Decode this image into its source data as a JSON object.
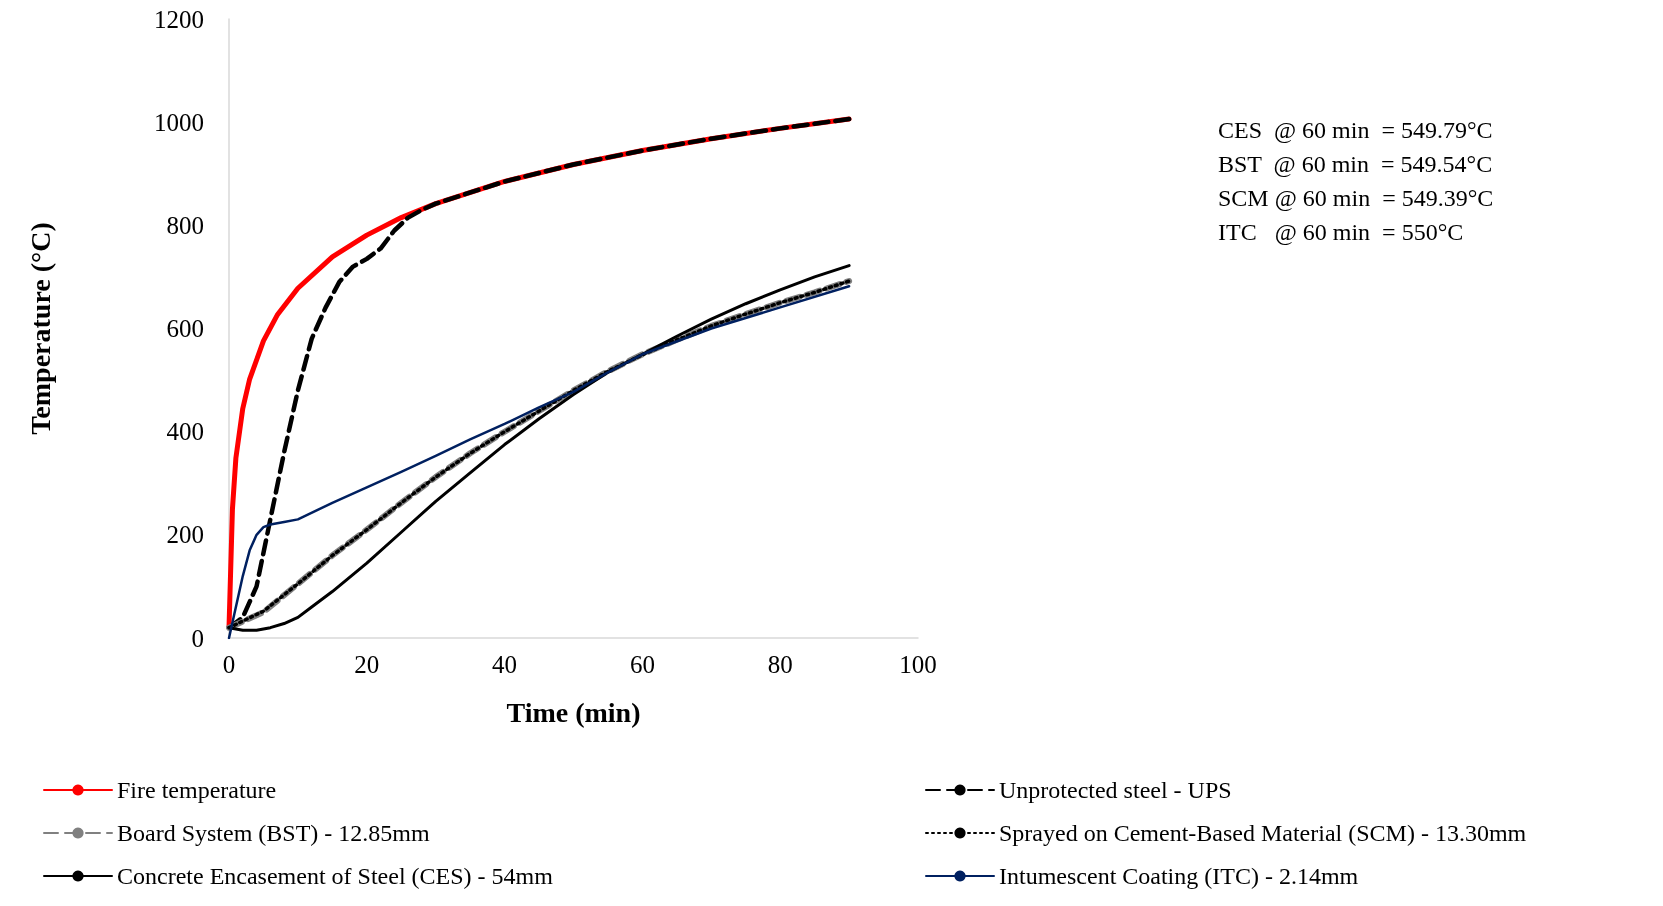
{
  "chart_data": {
    "type": "line",
    "xlabel": "Time (min)",
    "ylabel": "Temperature (°C)",
    "xlim": [
      0,
      100
    ],
    "xticks": [
      0,
      20,
      40,
      60,
      80,
      100
    ],
    "ylim": [
      0,
      1200
    ],
    "yticks": [
      0,
      200,
      400,
      600,
      800,
      1000,
      1200
    ],
    "grid": false,
    "legend": "bottom",
    "marker": "none",
    "annotations": [
      "CES  @ 60 min  = 549.79°C",
      "BST  @ 60 min  = 549.54°C",
      "SCM @ 60 min  = 549.39°C",
      "ITC   @ 60 min  = 550°C"
    ],
    "series": [
      {
        "name": "Fire temperature",
        "color": "#ff0000",
        "line_style": "solid",
        "x": [
          0,
          0.5,
          1,
          2,
          3,
          5,
          7,
          10,
          15,
          20,
          25,
          30,
          40,
          50,
          60,
          70,
          80,
          90
        ],
        "values": [
          20,
          250,
          349,
          445,
          502,
          576,
          626,
          678,
          739,
          781,
          815,
          842,
          885,
          918,
          945,
          968,
          988,
          1006
        ]
      },
      {
        "name": "Unprotected steel - UPS",
        "color": "#000000",
        "line_style": "dashed",
        "x": [
          0,
          2,
          4,
          6,
          8,
          10,
          12,
          14,
          16,
          18,
          20,
          22,
          24,
          26,
          28,
          30,
          40,
          50,
          60,
          70,
          80,
          90
        ],
        "values": [
          20,
          40,
          100,
          230,
          360,
          480,
          580,
          640,
          690,
          720,
          735,
          755,
          790,
          815,
          830,
          842,
          885,
          918,
          945,
          968,
          988,
          1006
        ]
      },
      {
        "name": "Board System (BST) - 12.85mm",
        "color": "#808080",
        "line_style": "dashed",
        "x": [
          0,
          5,
          10,
          15,
          20,
          25,
          30,
          35,
          40,
          45,
          50,
          55,
          60,
          65,
          70,
          75,
          80,
          85,
          90
        ],
        "values": [
          20,
          50,
          105,
          160,
          210,
          262,
          312,
          358,
          400,
          440,
          480,
          517,
          550,
          578,
          605,
          628,
          650,
          670,
          692
        ]
      },
      {
        "name": "Sprayed on Cement-Based Material (SCM) - 13.30mm",
        "color": "#000000",
        "line_style": "dotted",
        "x": [
          0,
          5,
          10,
          15,
          20,
          25,
          30,
          35,
          40,
          45,
          50,
          55,
          60,
          65,
          70,
          75,
          80,
          85,
          90
        ],
        "values": [
          20,
          52,
          105,
          160,
          210,
          262,
          312,
          358,
          400,
          440,
          480,
          517,
          549,
          578,
          605,
          628,
          650,
          670,
          692
        ]
      },
      {
        "name": "Concrete Encasement of Steel (CES) - 54mm",
        "color": "#000000",
        "line_style": "solid",
        "x": [
          0,
          2,
          4,
          6,
          8,
          10,
          12,
          15,
          20,
          25,
          30,
          35,
          40,
          45,
          50,
          55,
          60,
          65,
          70,
          75,
          80,
          85,
          90
        ],
        "values": [
          20,
          15,
          15,
          20,
          28,
          40,
          60,
          90,
          145,
          205,
          265,
          320,
          375,
          425,
          472,
          515,
          550,
          585,
          618,
          648,
          675,
          700,
          722
        ]
      },
      {
        "name": "Intumescent Coating (ITC) - 2.14mm",
        "color": "#002060",
        "line_style": "solid",
        "x": [
          0,
          1,
          2,
          3,
          4,
          5,
          6,
          8,
          10,
          15,
          20,
          25,
          30,
          35,
          40,
          45,
          50,
          55,
          60,
          70,
          80,
          90
        ],
        "values": [
          0,
          60,
          120,
          170,
          200,
          215,
          220,
          225,
          230,
          262,
          292,
          322,
          353,
          385,
          415,
          447,
          477,
          515,
          550,
          600,
          641,
          682
        ]
      }
    ]
  }
}
